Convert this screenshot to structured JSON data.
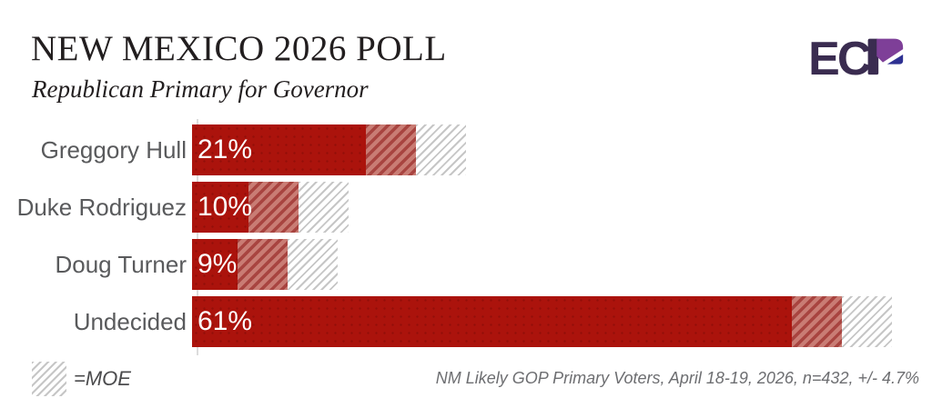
{
  "header": {
    "title": "NEW MEXICO 2026 POLL",
    "subtitle": "Republican Primary for Governor"
  },
  "logo": {
    "letters_ec": "EC",
    "letter_p": "P"
  },
  "chart_data": {
    "type": "bar",
    "orientation": "horizontal",
    "title": "NEW MEXICO 2026 POLL",
    "subtitle": "Republican Primary for Governor",
    "categories": [
      "Greggory Hull",
      "Duke Rodriguez",
      "Doug Turner",
      "Undecided"
    ],
    "values": [
      21,
      10,
      9,
      61
    ],
    "value_labels": [
      "21%",
      "10%",
      "9%",
      "61%"
    ],
    "moe_percent": 4.7,
    "xlim": [
      0,
      66
    ],
    "grid": false,
    "legend_position": "bottom-left",
    "bar_segments": [
      "solid: value minus MOE",
      "red hatch: MOE below value",
      "gray hatch: MOE above value"
    ]
  },
  "legend": {
    "label": "=MOE"
  },
  "footnote": "NM Likely GOP Primary Voters, April 18-19, 2026, n=432, +/- 4.7%",
  "colors": {
    "bar-solid": "#AB130C",
    "hatch-base": "#C97C74",
    "hatch-stripe": "#A84440",
    "outer-stripe": "#C6C6C6",
    "axis": "#DCDCDC",
    "label": "#595A5C",
    "title": "#221E1F",
    "footnote": "#6D6E71",
    "legend-text": "#4B4B4D",
    "logo-dark": "#3A2C50",
    "logo-purple": "#7E3F98",
    "logo-blue": "#2E3192"
  }
}
